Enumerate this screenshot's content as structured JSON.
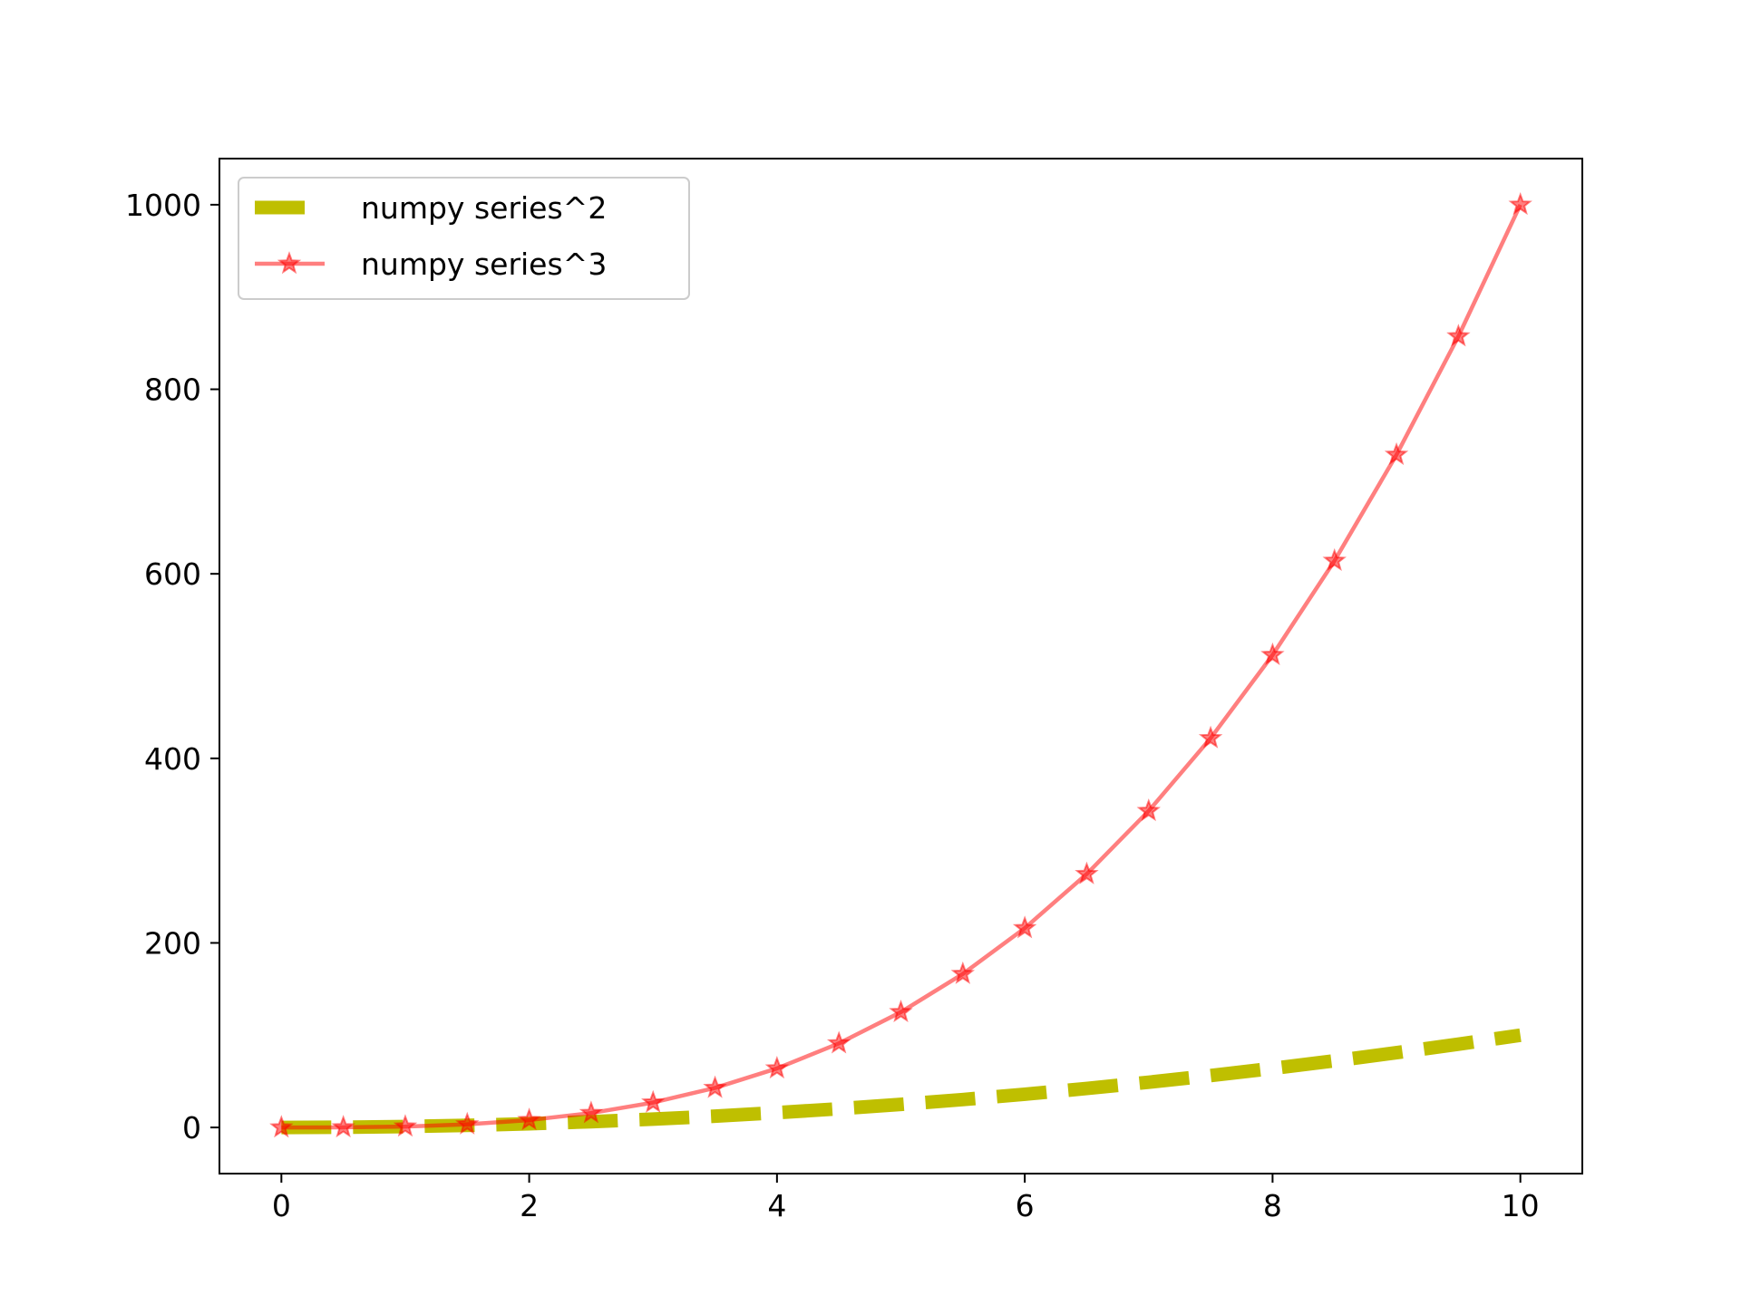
{
  "chart_data": {
    "type": "line",
    "title": "",
    "xlabel": "",
    "ylabel": "",
    "xlim": [
      -0.5,
      10.5
    ],
    "ylim": [
      -50,
      1050
    ],
    "xticks": [
      0,
      2,
      4,
      6,
      8,
      10
    ],
    "xtick_labels": [
      "0",
      "2",
      "4",
      "6",
      "8",
      "10"
    ],
    "yticks": [
      0,
      200,
      400,
      600,
      800,
      1000
    ],
    "ytick_labels": [
      "0",
      "200",
      "400",
      "600",
      "800",
      "1000"
    ],
    "grid": false,
    "legend": "upper-left",
    "series": [
      {
        "name": "numpy series^2",
        "color": "#bfbf00",
        "style": "dashed",
        "marker": "none",
        "x": [
          0,
          0.5,
          1,
          1.5,
          2,
          2.5,
          3,
          3.5,
          4,
          4.5,
          5,
          5.5,
          6,
          6.5,
          7,
          7.5,
          8,
          8.5,
          9,
          9.5,
          10
        ],
        "y": [
          0,
          0.25,
          1,
          2.25,
          4,
          6.25,
          9,
          12.25,
          16,
          20.25,
          25,
          30.25,
          36,
          42.25,
          49,
          56.25,
          64,
          72.25,
          81,
          90.25,
          100
        ]
      },
      {
        "name": "numpy series^3",
        "color": "#ff0000",
        "style": "solid",
        "marker": "star",
        "x": [
          0,
          0.5,
          1,
          1.5,
          2,
          2.5,
          3,
          3.5,
          4,
          4.5,
          5,
          5.5,
          6,
          6.5,
          7,
          7.5,
          8,
          8.5,
          9,
          9.5,
          10
        ],
        "y": [
          0,
          0.125,
          1,
          3.375,
          8,
          15.625,
          27,
          42.875,
          64,
          91.125,
          125,
          166.375,
          216,
          274.625,
          343,
          421.875,
          512,
          614.125,
          729,
          857.375,
          1000
        ]
      }
    ]
  }
}
